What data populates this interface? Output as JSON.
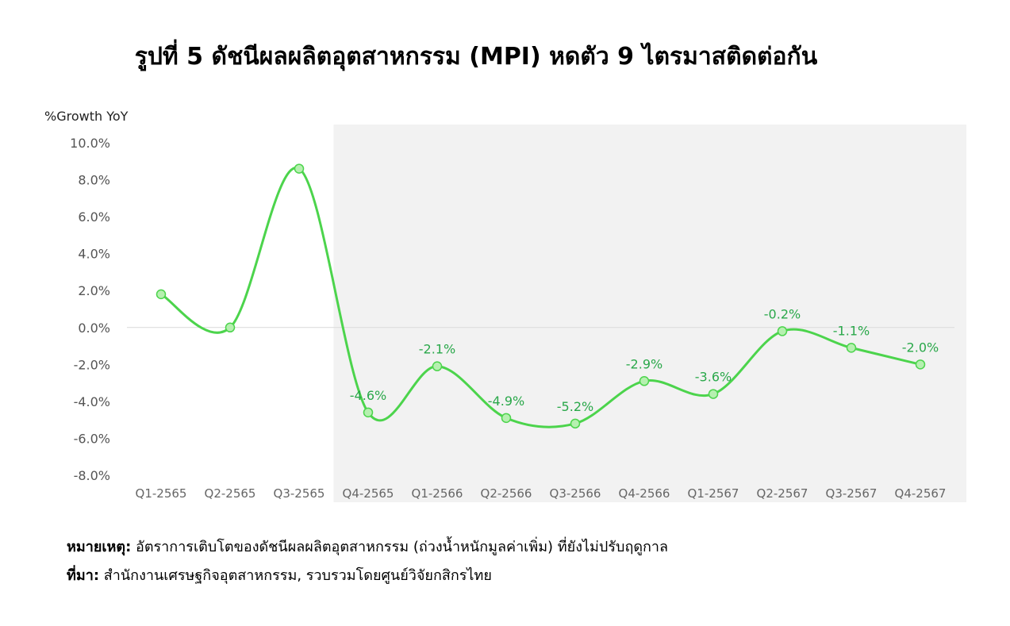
{
  "title": "รูปที่ 5 ดัชนีผลผลิตอุตสาหกรรม (MPI) หดตัว 9 ไตรมาสติดต่อกัน",
  "notes": {
    "remark_label": "หมายเหตุ:",
    "remark_text": " อัตราการเติบโตของดัชนีผลผลิตอุตสาหกรรม (ถ่วงน้ำหนักมูลค่าเพิ่ม) ที่ยังไม่ปรับฤดูกาล",
    "source_label": "ที่มา:",
    "source_text": " สำนักงานเศรษฐกิจอุตสาหกรรม, รวบรวมโดยศูนย์วิจัยกสิกรไทย"
  },
  "colors": {
    "line": "#4cd44c",
    "marker_fill": "#b6f0b0",
    "label": "#2aa84a",
    "shade": "#f2f2f2",
    "zero_line": "#d9d9d9"
  },
  "chart_data": {
    "type": "line",
    "ylabel": "%Growth YoY",
    "categories": [
      "Q1-2565",
      "Q2-2565",
      "Q3-2565",
      "Q4-2565",
      "Q1-2566",
      "Q2-2566",
      "Q3-2566",
      "Q4-2566",
      "Q1-2567",
      "Q2-2567",
      "Q3-2567",
      "Q4-2567"
    ],
    "series": [
      {
        "values": [
          1.8,
          0.0,
          8.6,
          -4.6,
          -2.1,
          -4.9,
          -5.2,
          -2.9,
          -3.6,
          -0.2,
          -1.1,
          -2.0
        ]
      }
    ],
    "data_labels": [
      "",
      "",
      "",
      "-4.6%",
      "-2.1%",
      "-4.9%",
      "-5.2%",
      "-2.9%",
      "-3.6%",
      "-0.2%",
      "-1.1%",
      "-2.0%"
    ],
    "y_ticks": [
      "10.0%",
      "8.0%",
      "6.0%",
      "4.0%",
      "2.0%",
      "0.0%",
      "-2.0%",
      "-4.0%",
      "-6.0%",
      "-8.0%"
    ],
    "ylim": [
      -8,
      10
    ],
    "shaded_from_category": "Q4-2565",
    "grid": false,
    "legend": "none"
  }
}
